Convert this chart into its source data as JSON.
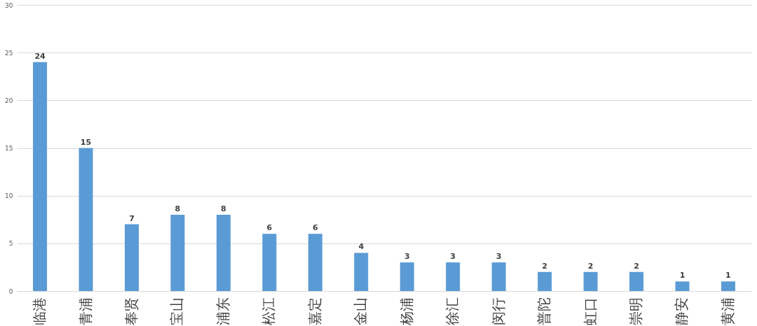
{
  "chart_data": {
    "type": "bar",
    "categories": [
      "临港",
      "青浦",
      "奉贤",
      "宝山",
      "浦东",
      "松江",
      "嘉定",
      "金山",
      "杨浦",
      "徐汇",
      "闵行",
      "普陀",
      "虹口",
      "崇明",
      "静安",
      "黄浦"
    ],
    "values": [
      24,
      15,
      7,
      8,
      8,
      6,
      6,
      4,
      3,
      3,
      3,
      2,
      2,
      2,
      1,
      1
    ],
    "color": "#5b9bd5",
    "ylim": [
      0,
      30
    ],
    "yticks": [
      0,
      5,
      10,
      15,
      20,
      25,
      30
    ],
    "grid": "y",
    "data_labels": true
  }
}
